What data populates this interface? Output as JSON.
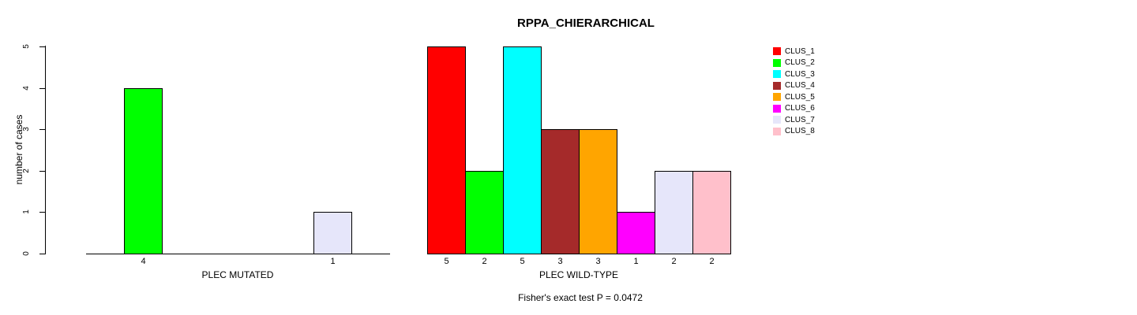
{
  "title": "RPPA_CHIERARCHICAL",
  "y_axis": {
    "label": "number of cases",
    "ticks": [
      "0",
      "1",
      "2",
      "3",
      "4",
      "5"
    ]
  },
  "clusters": [
    "CLUS_1",
    "CLUS_2",
    "CLUS_3",
    "CLUS_4",
    "CLUS_5",
    "CLUS_6",
    "CLUS_7",
    "CLUS_8"
  ],
  "palette": [
    "#FF0000",
    "#00FF00",
    "#00FFFF",
    "#A52A2A",
    "#FFA500",
    "#FF00FF",
    "#E6E6FA",
    "#FFC0CB"
  ],
  "panels": [
    {
      "id": "mutated",
      "xlabel": "PLEC MUTATED",
      "values": [
        0,
        4,
        0,
        0,
        0,
        0,
        1,
        0
      ]
    },
    {
      "id": "wild-type",
      "xlabel": "PLEC WILD-TYPE",
      "values": [
        5,
        2,
        5,
        3,
        3,
        1,
        2,
        2
      ]
    }
  ],
  "caption": "Fisher's exact test P = 0.0472",
  "chart_data": {
    "type": "bar",
    "title": "RPPA_CHIERARCHICAL",
    "xlabel": "",
    "ylabel": "number of cases",
    "ylim": [
      0,
      5
    ],
    "grid": false,
    "legend_position": "right",
    "categories": [
      "CLUS_1",
      "CLUS_2",
      "CLUS_3",
      "CLUS_4",
      "CLUS_5",
      "CLUS_6",
      "CLUS_7",
      "CLUS_8"
    ],
    "series": [
      {
        "name": "PLEC MUTATED",
        "values": [
          0,
          4,
          0,
          0,
          0,
          0,
          1,
          0
        ]
      },
      {
        "name": "PLEC WILD-TYPE",
        "values": [
          5,
          2,
          5,
          3,
          3,
          1,
          2,
          2
        ]
      }
    ],
    "colors": [
      "#FF0000",
      "#00FF00",
      "#00FFFF",
      "#A52A2A",
      "#FFA500",
      "#FF00FF",
      "#E6E6FA",
      "#FFC0CB"
    ],
    "bar_value_labels_shown_when": "value > 0",
    "annotation": "Fisher's exact test P = 0.0472"
  }
}
